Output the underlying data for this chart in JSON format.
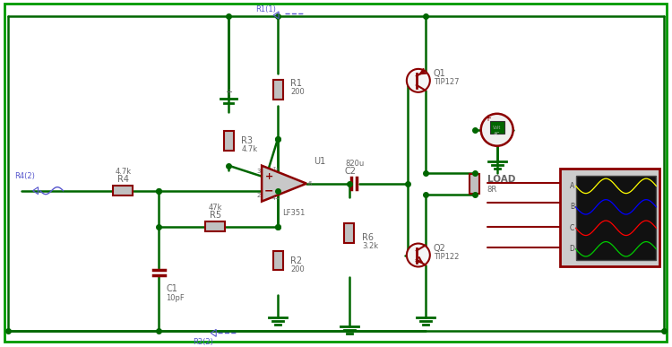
{
  "bg_color": "#ffffff",
  "border_color": "#009900",
  "wire_color": "#006600",
  "component_color": "#8b0000",
  "label_color": "#5555cc",
  "text_color": "#666666",
  "components": {
    "R1": {
      "label": "R1",
      "value": "200"
    },
    "R2": {
      "label": "R2",
      "value": "200"
    },
    "R3": {
      "label": "R3",
      "value": "4.7k"
    },
    "R4": {
      "label": "R4",
      "value": "4.7k"
    },
    "R5": {
      "label": "R5",
      "value": "47k"
    },
    "R6": {
      "label": "R6",
      "value": "3.2k"
    },
    "C1": {
      "label": "C1",
      "value": "10pF"
    },
    "C2": {
      "label": "C2",
      "value": "820u"
    },
    "Q1": {
      "label": "Q1",
      "value": "TIP127"
    },
    "Q2": {
      "label": "Q2",
      "value": "TIP122"
    },
    "U1": {
      "label": "U1",
      "value": "LF351"
    },
    "LOAD": {
      "label": "LOAD",
      "value": "8R"
    }
  },
  "probe_R1_1": "R1(1)",
  "probe_R4_2": "R4(2)",
  "probe_R2_2": "R2(2)",
  "osc_channels": [
    "A",
    "B",
    "C",
    "D"
  ],
  "wave_colors": [
    "#ffff00",
    "#0000ff",
    "#ff0000",
    "#00cc00"
  ]
}
